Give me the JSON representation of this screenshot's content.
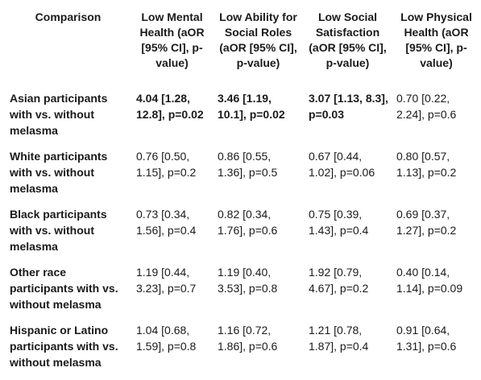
{
  "table": {
    "headers": [
      "Comparison",
      "Low Mental Health (aOR [95% CI], p-value)",
      "Low Ability for Social Roles (aOR [95% CI], p-value)",
      "Low Social Satisfaction (aOR [95% CI], p-value)",
      "Low Physical Health (aOR [95% CI], p-value)"
    ],
    "rows": [
      {
        "label": "Asian participants with vs. without melasma",
        "cells": [
          "4.04 [1.28, 12.8], p=0.02",
          "3.46 [1.19, 10.1], p=0.02",
          "3.07 [1.13, 8.3], p=0.03",
          "0.70 [0.22, 2.24], p=0.6"
        ],
        "bold": [
          true,
          true,
          true,
          false
        ]
      },
      {
        "label": "White participants with vs. without melasma",
        "cells": [
          "0.76 [0.50, 1.15], p=0.2",
          "0.86 [0.55, 1.36], p=0.5",
          "0.67 [0.44, 1.02], p=0.06",
          "0.80 [0.57, 1.13], p=0.2"
        ],
        "bold": [
          false,
          false,
          false,
          false
        ]
      },
      {
        "label": "Black participants with vs. without melasma",
        "cells": [
          "0.73 [0.34, 1.56], p=0.4",
          "0.82 [0.34, 1.76], p=0.6",
          "0.75 [0.39, 1.43], p=0.4",
          "0.69 [0.37, 1.27], p=0.2"
        ],
        "bold": [
          false,
          false,
          false,
          false
        ]
      },
      {
        "label": "Other race participants with vs. without melasma",
        "cells": [
          "1.19 [0.44, 3.23], p=0.7",
          "1.19 [0.40, 3.53], p=0.8",
          "1.92 [0.79, 4.67], p=0.2",
          "0.40 [0.14, 1.14], p=0.09"
        ],
        "bold": [
          false,
          false,
          false,
          false
        ]
      },
      {
        "label": "Hispanic or Latino participants with vs. without melasma",
        "cells": [
          "1.04 [0.68, 1.59], p=0.8",
          "1.16 [0.72, 1.86], p=0.6",
          "1.21 [0.78, 1.87], p=0.4",
          "0.91 [0.64, 1.31], p=0.6"
        ],
        "bold": [
          false,
          false,
          false,
          false
        ]
      }
    ]
  }
}
